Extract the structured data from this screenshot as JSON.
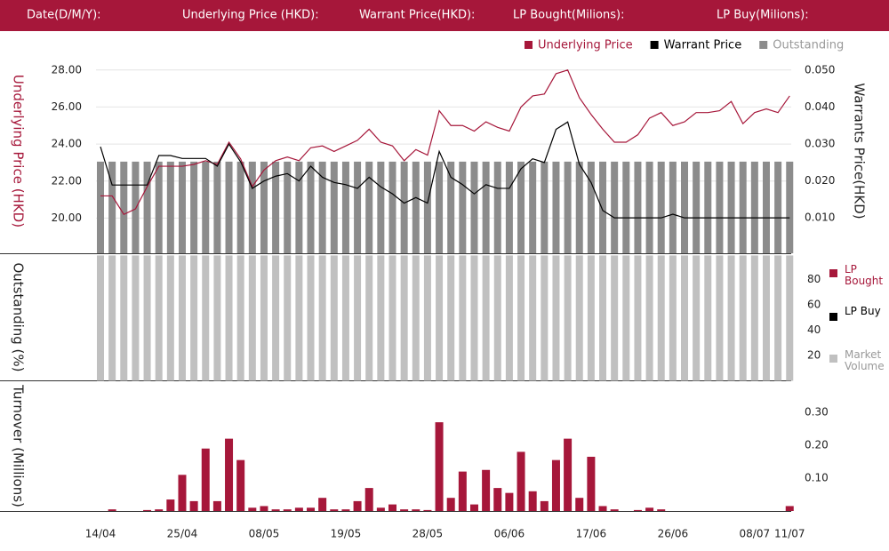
{
  "header": {
    "labels": [
      "Date(D/M/Y):",
      "Underlying Price (HKD):",
      "Warrant  Price(HKD):",
      "LP Bought(Milions):",
      "LP Buy(Milions):"
    ]
  },
  "chart_data": [
    {
      "type": "line",
      "ylabel": "Underlying Price (HKD)",
      "y2label": "Warrants  Price(HKD)",
      "ylim": [
        18.1,
        28.9
      ],
      "yticks": [
        {
          "value": 20,
          "label": "20.00"
        },
        {
          "value": 22,
          "label": "22.00"
        },
        {
          "value": 24,
          "label": "24.00"
        },
        {
          "value": 26,
          "label": "26.00"
        },
        {
          "value": 28,
          "label": "28.00"
        }
      ],
      "y2lim": [
        0.0004,
        0.0546
      ],
      "y2ticks": [
        {
          "value": 0.01,
          "label": "0.010"
        },
        {
          "value": 0.02,
          "label": "0.020"
        },
        {
          "value": 0.03,
          "label": "0.030"
        },
        {
          "value": 0.04,
          "label": "0.040"
        },
        {
          "value": 0.05,
          "label": "0.050"
        }
      ],
      "y3lim": [
        0,
        216
      ],
      "grid": true,
      "series": [
        {
          "name": "Underlying Price",
          "color": "#a6173a",
          "values": [
            21.2,
            21.2,
            20.2,
            20.5,
            21.7,
            22.8,
            22.8,
            22.8,
            22.9,
            23.1,
            22.9,
            24.1,
            23.2,
            21.7,
            22.6,
            23.1,
            23.3,
            23.1,
            23.8,
            23.9,
            23.6,
            23.9,
            24.2,
            24.8,
            24.1,
            23.9,
            23.1,
            23.7,
            23.4,
            25.8,
            25.0,
            25.0,
            24.7,
            25.2,
            24.9,
            24.7,
            26.0,
            26.6,
            26.7,
            27.8,
            28.0,
            26.5,
            25.6,
            24.8,
            24.1,
            24.1,
            24.5,
            25.4,
            25.7,
            25.0,
            25.2,
            25.7,
            25.7,
            25.8,
            26.3,
            25.1,
            25.7,
            25.9,
            25.7,
            26.6
          ]
        },
        {
          "name": "Warrant  Price",
          "color": "#000000",
          "axis": "y2",
          "values": [
            0.0293,
            0.0189,
            0.0189,
            0.0189,
            0.0189,
            0.0269,
            0.0269,
            0.0261,
            0.0261,
            0.0261,
            0.024,
            0.03,
            0.0252,
            0.018,
            0.02,
            0.0213,
            0.022,
            0.02,
            0.024,
            0.021,
            0.0196,
            0.019,
            0.018,
            0.021,
            0.0184,
            0.0165,
            0.014,
            0.0155,
            0.014,
            0.028,
            0.021,
            0.019,
            0.0165,
            0.019,
            0.018,
            0.018,
            0.0233,
            0.026,
            0.025,
            0.034,
            0.036,
            0.0245,
            0.0196,
            0.012,
            0.01,
            0.01,
            0.01,
            0.01,
            0.01,
            0.011,
            0.01,
            0.01,
            0.01,
            0.01,
            0.01,
            0.01,
            0.01,
            0.01,
            0.01,
            0.01
          ]
        },
        {
          "name": "Outstanding",
          "color": "#8c8c8c",
          "axis": "y3",
          "values": [
            99,
            99,
            99,
            99,
            99,
            99,
            99,
            99,
            99,
            99,
            99,
            99,
            99,
            99,
            99,
            99,
            99,
            99,
            99,
            99,
            99,
            99,
            99,
            99,
            99,
            99,
            99,
            99,
            99,
            99,
            99,
            99,
            99,
            99,
            99,
            99,
            99,
            99,
            99,
            99,
            99,
            99,
            99,
            99,
            99,
            99,
            99,
            99,
            99,
            99,
            99,
            99,
            99,
            99,
            99,
            99,
            99,
            99,
            99,
            99
          ]
        }
      ]
    },
    {
      "type": "bar",
      "ylabel": "Outstanding (%)",
      "ylim": [
        0,
        100
      ],
      "yticks": [
        20,
        40,
        60,
        80
      ],
      "legend": [
        {
          "name": "LP Bought",
          "color": "#a6173a"
        },
        {
          "name": "LP Buy",
          "color": "#000000"
        }
      ],
      "series": [
        {
          "name": "Market Volume",
          "color": "#c0c0c0",
          "values": [
            99,
            99,
            99,
            99,
            99,
            99,
            99,
            99,
            99,
            99,
            99,
            99,
            99,
            99,
            99,
            99,
            99,
            99,
            99,
            99,
            99,
            99,
            99,
            99,
            99,
            99,
            99,
            99,
            99,
            99,
            99,
            99,
            99,
            99,
            99,
            99,
            99,
            99,
            99,
            99,
            99,
            99,
            99,
            99,
            99,
            99,
            99,
            99,
            99,
            99,
            99,
            99,
            99,
            99,
            99,
            99,
            99,
            99,
            99,
            99
          ]
        }
      ]
    },
    {
      "type": "bar",
      "ylabel": "Turnover (Millions)",
      "ylim": [
        0,
        0.392
      ],
      "yticks": [
        {
          "value": 0.1,
          "label": "0.10"
        },
        {
          "value": 0.2,
          "label": "0.20"
        },
        {
          "value": 0.3,
          "label": "0.30"
        }
      ],
      "categories": [
        "14/04",
        null,
        null,
        null,
        null,
        null,
        null,
        "25/04",
        null,
        null,
        null,
        null,
        null,
        null,
        "08/05",
        null,
        null,
        null,
        null,
        null,
        null,
        "19/05",
        null,
        null,
        null,
        null,
        null,
        null,
        "28/05",
        null,
        null,
        null,
        null,
        null,
        null,
        "06/06",
        null,
        null,
        null,
        null,
        null,
        null,
        "17/06",
        null,
        null,
        null,
        null,
        null,
        null,
        "26/06",
        null,
        null,
        null,
        null,
        null,
        null,
        "08/07",
        null,
        null,
        "11/07"
      ],
      "series": [
        {
          "color": "#a6173a",
          "values": [
            0,
            0.005,
            0,
            0,
            0.003,
            0.005,
            0.035,
            0.11,
            0.03,
            0.19,
            0.03,
            0.22,
            0.155,
            0.01,
            0.015,
            0.005,
            0.005,
            0.01,
            0.01,
            0.04,
            0.005,
            0.005,
            0.03,
            0.07,
            0.01,
            0.02,
            0.005,
            0.005,
            0.003,
            0.27,
            0.04,
            0.12,
            0.02,
            0.125,
            0.07,
            0.055,
            0.18,
            0.06,
            0.03,
            0.155,
            0.22,
            0.04,
            0.165,
            0.015,
            0.005,
            0,
            0.003,
            0.01,
            0.005,
            0,
            0,
            0,
            0,
            0,
            0,
            0,
            0,
            0,
            0,
            0.015
          ]
        }
      ]
    }
  ]
}
